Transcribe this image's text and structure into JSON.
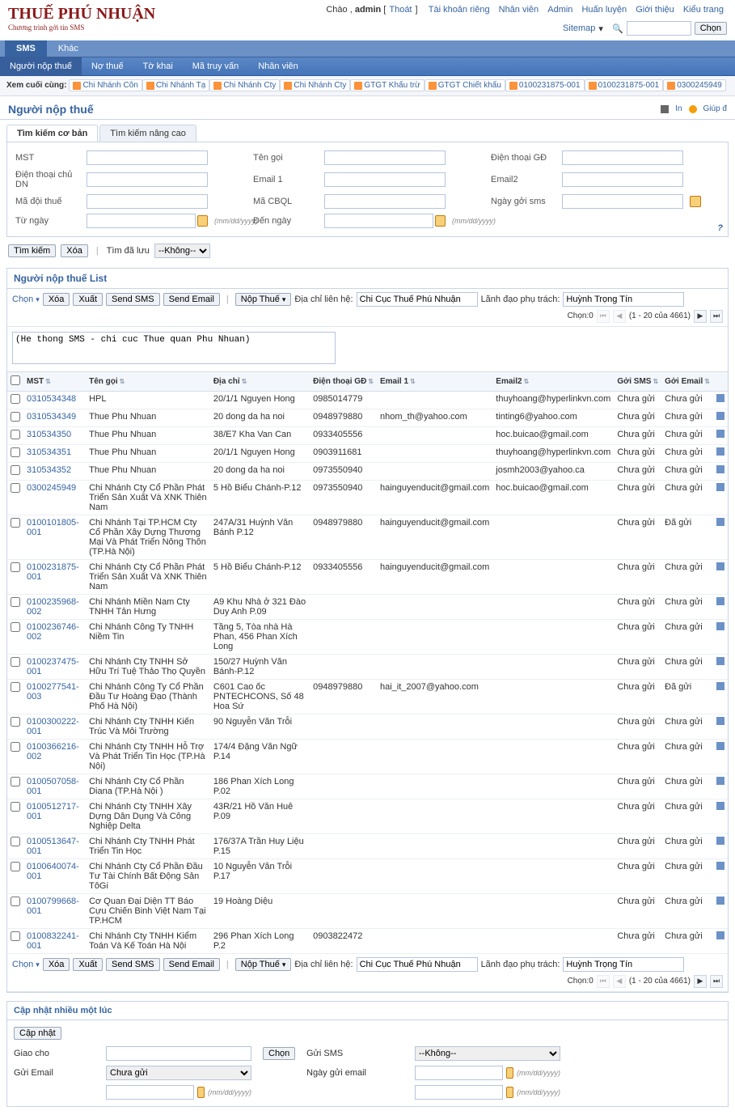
{
  "header": {
    "logo_main": "THUẾ PHÚ NHUẬN",
    "logo_sub": "Chương trình gởi tin SMS",
    "greeting": "Chào ,",
    "username": "admin",
    "logout": "Thoát",
    "links": [
      "Tài khoản riêng",
      "Nhân viên",
      "Admin",
      "Huấn luyện",
      "Giới thiệu",
      "Kiểu trang"
    ],
    "sitemap": "Sitemap",
    "chon": "Chọn"
  },
  "tabs": {
    "main": [
      "SMS",
      "Khác"
    ],
    "sub": [
      "Người nộp thuế",
      "Nợ thuế",
      "Tờ khai",
      "Mã truy vấn",
      "Nhân viên"
    ]
  },
  "breadcrumb": {
    "label": "Xem cuối cùng:",
    "items": [
      "Chi Nhánh Côn",
      "Chi Nhánh Tạ",
      "Chi Nhánh Cty",
      "Chi Nhánh Cty",
      "GTGT Khấu trừ",
      "GTGT Chiết khấu",
      "0100231875-001",
      "0100231875-001",
      "0300245949"
    ]
  },
  "page": {
    "title": "Người nộp thuế",
    "print": "In",
    "help": "Giúp đ"
  },
  "search": {
    "tab1": "Tìm kiếm cơ bản",
    "tab2": "Tìm kiếm nâng cao",
    "mst": "MST",
    "ten_goi": "Tên gọi",
    "dien_thoai_gd": "Điện thoại GĐ",
    "dien_thoai_chu_dn": "Điện thoại chủ DN",
    "email1": "Email 1",
    "email2": "Email2",
    "ma_doi_thue": "Mã đội thuế",
    "ma_cbql": "Mã CBQL",
    "ngay_goi_sms": "Ngày gởi sms",
    "tu_ngay": "Từ ngày",
    "den_ngay": "Đến ngày",
    "date_hint": "(mm/dd/yyyy)",
    "tim_kiem": "Tìm kiếm",
    "xoa": "Xóa",
    "tim_da_luu": "Tìm đã lưu",
    "khong": "--Không--"
  },
  "list": {
    "title": "Người nộp thuế List",
    "msg": "(He thong SMS - chi cuc Thue quan Phu Nhuan)",
    "toolbar": {
      "chon": "Chọn",
      "xoa": "Xóa",
      "xuat": "Xuất",
      "send_sms": "Send SMS",
      "send_email": "Send Email",
      "nop_thue": "Nộp Thuế",
      "dia_chi_label": "Địa chỉ liên hệ:",
      "dia_chi_val": "Chi Cục Thuế Phú Nhuận",
      "lanh_dao_label": "Lãnh đạo phụ trách:",
      "lanh_dao_val": "Huỳnh Trọng Tín",
      "chon_count": "Chọn:0",
      "page_info": "(1 - 20 của 4661)"
    },
    "columns": [
      "MST",
      "Tên gọi",
      "Địa chỉ",
      "Điện thoại GĐ",
      "Email 1",
      "Email2",
      "Gởi SMS",
      "Gởi Email"
    ],
    "chua_gui": "Chưa gửi",
    "da_gui": "Đã gửi",
    "rows": [
      {
        "mst": "0310534348",
        "ten": "HPL",
        "dc": "20/1/1 Nguyen Hong",
        "dt": "0985014779",
        "e1": "",
        "e2": "thuyhoang@hyperlinkvn.com",
        "sms": "Chưa gửi",
        "email": "Chưa gửi"
      },
      {
        "mst": "0310534349",
        "ten": "Thue Phu Nhuan",
        "dc": "20 dong da ha noi",
        "dt": "0948979880",
        "e1": "nhom_th@yahoo.com",
        "e2": "tinting6@yahoo.com",
        "sms": "Chưa gửi",
        "email": "Chưa gửi"
      },
      {
        "mst": "310534350",
        "ten": "Thue Phu Nhuan",
        "dc": "38/E7 Kha Van Can",
        "dt": "0933405556",
        "e1": "",
        "e2": "hoc.buicao@gmail.com",
        "sms": "Chưa gửi",
        "email": "Chưa gửi"
      },
      {
        "mst": "310534351",
        "ten": "Thue Phu Nhuan",
        "dc": "20/1/1 Nguyen Hong",
        "dt": "0903911681",
        "e1": "",
        "e2": "thuyhoang@hyperlinkvn.com",
        "sms": "Chưa gửi",
        "email": "Chưa gửi"
      },
      {
        "mst": "310534352",
        "ten": "Thue Phu Nhuan",
        "dc": "20 dong da ha noi",
        "dt": "0973550940",
        "e1": "",
        "e2": "josmh2003@yahoo.ca",
        "sms": "Chưa gửi",
        "email": "Chưa gửi"
      },
      {
        "mst": "0300245949",
        "ten": "Chi Nhánh Cty Cổ Phần Phát Triển Sản Xuất Và XNK Thiên Nam",
        "dc": "5 Hồ Biểu Chánh-P.12",
        "dt": "0973550940",
        "e1": "hainguyenducit@gmail.com",
        "e2": "hoc.buicao@gmail.com",
        "sms": "Chưa gửi",
        "email": "Chưa gửi"
      },
      {
        "mst": "0100101805-001",
        "ten": "Chi Nhánh Tại TP.HCM Cty Cổ Phần Xây Dựng Thương Mại Và Phát Triển Nông Thôn (TP.Hà Nội)",
        "dc": "247A/31 Huỳnh Văn Bánh P.12",
        "dt": "0948979880",
        "e1": "hainguyenducit@gmail.com",
        "e2": "",
        "sms": "Chưa gửi",
        "email": "Đã gửi"
      },
      {
        "mst": "0100231875-001",
        "ten": "Chi Nhánh Cty Cổ Phần Phát Triển Sản Xuất Và XNK Thiên Nam",
        "dc": "5 Hồ Biểu Chánh-P.12",
        "dt": "0933405556",
        "e1": "hainguyenducit@gmail.com",
        "e2": "",
        "sms": "Chưa gửi",
        "email": "Chưa gửi"
      },
      {
        "mst": "0100235968-002",
        "ten": "Chi Nhánh Miền Nam Cty TNHH Tân Hưng",
        "dc": "A9 Khu Nhà ở 321 Đào Duy Anh P.09",
        "dt": "",
        "e1": "",
        "e2": "",
        "sms": "Chưa gửi",
        "email": "Chưa gửi"
      },
      {
        "mst": "0100236746-002",
        "ten": "Chi Nhánh Công Ty TNHH Niềm Tin",
        "dc": "Tầng 5, Tòa nhà Hà Phan, 456 Phan Xích Long",
        "dt": "",
        "e1": "",
        "e2": "",
        "sms": "Chưa gửi",
        "email": "Chưa gửi"
      },
      {
        "mst": "0100237475-001",
        "ten": "Chi Nhánh Cty TNHH Sở Hữu Trí Tuệ Thảo Thọ Quyền",
        "dc": "150/27 Huỳnh Văn Bánh-P.12",
        "dt": "",
        "e1": "",
        "e2": "",
        "sms": "Chưa gửi",
        "email": "Chưa gửi"
      },
      {
        "mst": "0100277541-003",
        "ten": "Chi Nhánh Công Ty Cổ Phần Đầu Tư Hoàng Đạo (Thành Phố Hà Nội)",
        "dc": "C601 Cao ốc PNTECHCONS, Số 48 Hoa Sứ",
        "dt": "0948979880",
        "e1": "hai_it_2007@yahoo.com",
        "e2": "",
        "sms": "Chưa gửi",
        "email": "Đã gửi"
      },
      {
        "mst": "0100300222-001",
        "ten": "Chi Nhánh Cty TNHH Kiến Trúc Và Môi Trường",
        "dc": "90 Nguyễn Văn Trỗi",
        "dt": "",
        "e1": "",
        "e2": "",
        "sms": "Chưa gửi",
        "email": "Chưa gửi"
      },
      {
        "mst": "0100366216-002",
        "ten": "Chi Nhánh Cty TNHH Hỗ Trợ Và Phát Triển Tin Học (TP.Hà Nội)",
        "dc": "174/4 Đặng Văn Ngữ P.14",
        "dt": "",
        "e1": "",
        "e2": "",
        "sms": "Chưa gửi",
        "email": "Chưa gửi"
      },
      {
        "mst": "0100507058-001",
        "ten": "Chi Nhánh Cty Cổ Phần Diana (TP.Hà Nội )",
        "dc": "186 Phan Xích Long P.02",
        "dt": "",
        "e1": "",
        "e2": "",
        "sms": "Chưa gửi",
        "email": "Chưa gửi"
      },
      {
        "mst": "0100512717-001",
        "ten": "Chi Nhánh Cty TNHH Xây Dựng Dân Dụng Và Công Nghiệp Delta",
        "dc": "43R/21 Hồ Văn Huê P.09",
        "dt": "",
        "e1": "",
        "e2": "",
        "sms": "Chưa gửi",
        "email": "Chưa gửi"
      },
      {
        "mst": "0100513647-001",
        "ten": "Chi Nhánh Cty TNHH Phát Triển Tin Học",
        "dc": "176/37A Trần Huy Liệu P.15",
        "dt": "",
        "e1": "",
        "e2": "",
        "sms": "Chưa gửi",
        "email": "Chưa gửi"
      },
      {
        "mst": "0100640074-001",
        "ten": "Chi Nhánh Cty Cổ Phần Đầu Tư Tài Chính Bất Động Sản TôGi",
        "dc": "10 Nguyễn Văn Trỗi P.17",
        "dt": "",
        "e1": "",
        "e2": "",
        "sms": "Chưa gửi",
        "email": "Chưa gửi"
      },
      {
        "mst": "0100799668-001",
        "ten": "Cơ Quan Đại Diện TT Báo Cựu Chiến Binh Việt Nam Tại TP.HCM",
        "dc": "19 Hoàng Diệu",
        "dt": "",
        "e1": "",
        "e2": "",
        "sms": "Chưa gửi",
        "email": "Chưa gửi"
      },
      {
        "mst": "0100832241-001",
        "ten": "Chi Nhánh Cty TNHH Kiểm Toán Và Kế Toán Hà Nội",
        "dc": "296 Phan Xích Long P.2",
        "dt": "0903822472",
        "e1": "",
        "e2": "",
        "sms": "Chưa gửi",
        "email": "Chưa gửi"
      }
    ]
  },
  "bulk": {
    "title": "Cập nhật nhiều một lúc",
    "cap_nhat": "Cập nhật",
    "giao_cho": "Giao cho",
    "chon": "Chọn",
    "gui_sms": "Gửi SMS",
    "khong": "--Không--",
    "gui_email": "Gửi Email",
    "chua_gui": "Chưa gửi",
    "ngay_gui_email": "Ngày gửi email",
    "date_hint": "(mm/dd/yyyy)"
  }
}
